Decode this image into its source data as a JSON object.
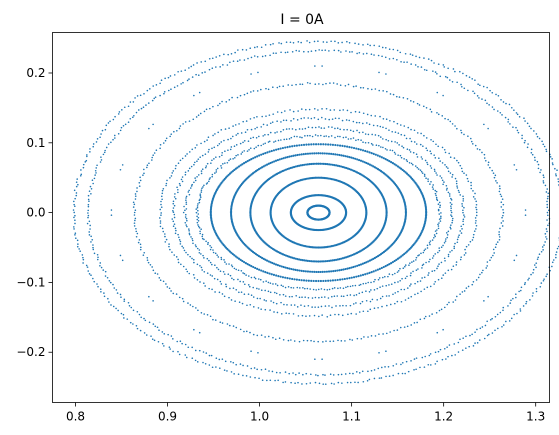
{
  "chart_data": {
    "type": "scatter",
    "title": "I = 0A",
    "xlabel": "",
    "ylabel": "",
    "xlim": [
      0.775,
      1.315
    ],
    "ylim": [
      -0.272,
      0.258
    ],
    "x_ticks": [
      "0.8",
      "0.9",
      "1.0",
      "1.1",
      "1.2",
      "1.3"
    ],
    "y_ticks": [
      "0.2",
      "0.1",
      "0.0",
      "−0.1",
      "−0.2"
    ],
    "x_tick_values": [
      0.8,
      0.9,
      1.0,
      1.1,
      1.2,
      1.3
    ],
    "y_tick_values": [
      0.2,
      0.1,
      0.0,
      -0.1,
      -0.2
    ],
    "grid": false,
    "legend": "none",
    "marker_color": "#1f77b4",
    "center": [
      1.064,
      0.0
    ],
    "orbits": [
      {
        "rx": 0.012,
        "ry": 0.01,
        "points": 120,
        "style": "continuous"
      },
      {
        "rx": 0.03,
        "ry": 0.025,
        "points": 160,
        "style": "continuous"
      },
      {
        "rx": 0.052,
        "ry": 0.05,
        "points": 200,
        "style": "continuous"
      },
      {
        "rx": 0.074,
        "ry": 0.07,
        "points": 240,
        "style": "continuous"
      },
      {
        "rx": 0.095,
        "ry": 0.085,
        "points": 260,
        "style": "continuous"
      },
      {
        "rx": 0.117,
        "ry": 0.098,
        "points": 280,
        "style": "continuous"
      },
      {
        "rx": 0.132,
        "ry": 0.11,
        "points": 280,
        "style": "sparse"
      },
      {
        "rx": 0.145,
        "ry": 0.122,
        "points": 260,
        "style": "sparse"
      },
      {
        "rx": 0.158,
        "ry": 0.135,
        "points": 260,
        "style": "sparse"
      },
      {
        "rx": 0.172,
        "ry": 0.148,
        "points": 240,
        "style": "sparse"
      },
      {
        "rx": 0.2,
        "ry": 0.185,
        "points": 300,
        "style": "sparse"
      },
      {
        "rx": 0.225,
        "ry": 0.21,
        "points": 40,
        "style": "islands"
      },
      {
        "rx": 0.25,
        "ry": 0.232,
        "points": 380,
        "style": "sparse"
      },
      {
        "rx": 0.266,
        "ry": 0.245,
        "points": 380,
        "style": "sparse"
      }
    ]
  }
}
